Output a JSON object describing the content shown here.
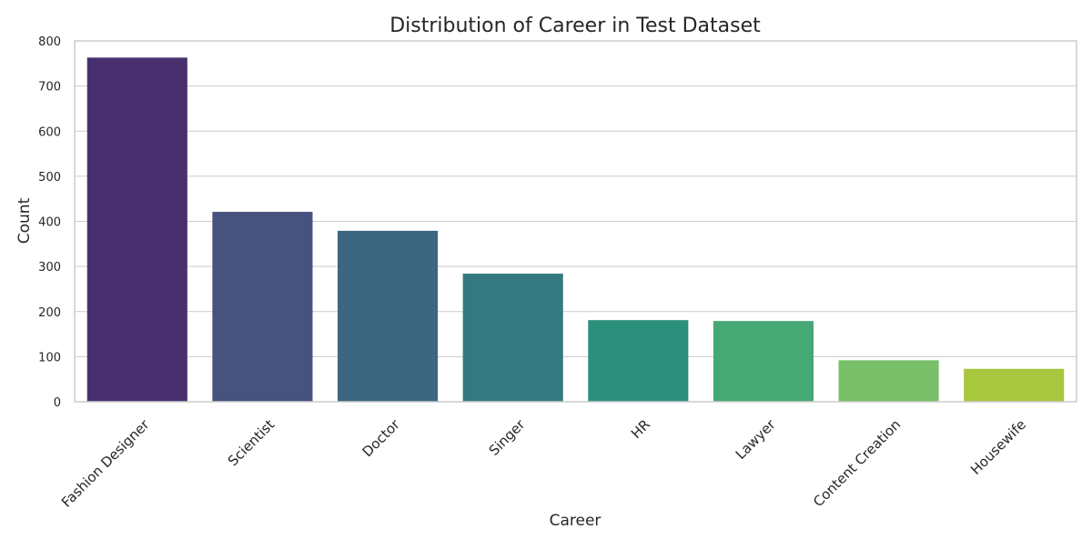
{
  "chart_data": {
    "type": "bar",
    "title": "Distribution of Career in Test Dataset",
    "xlabel": "Career",
    "ylabel": "Count",
    "ylim": [
      0,
      800
    ],
    "yticks": [
      0,
      100,
      200,
      300,
      400,
      500,
      600,
      700,
      800
    ],
    "grid": true,
    "categories": [
      "Fashion Designer",
      "Scientist",
      "Doctor",
      "Singer",
      "HR",
      "Lawyer",
      "Content Creation",
      "Housewife"
    ],
    "values": [
      763,
      421,
      379,
      284,
      181,
      179,
      92,
      73
    ],
    "colors": [
      "#48306f",
      "#47527f",
      "#3d6680",
      "#337a80",
      "#2c8f7c",
      "#46a875",
      "#78bf67",
      "#a8c73f"
    ],
    "grid_color": "#cccccc",
    "frame_color": "#cccccc"
  }
}
